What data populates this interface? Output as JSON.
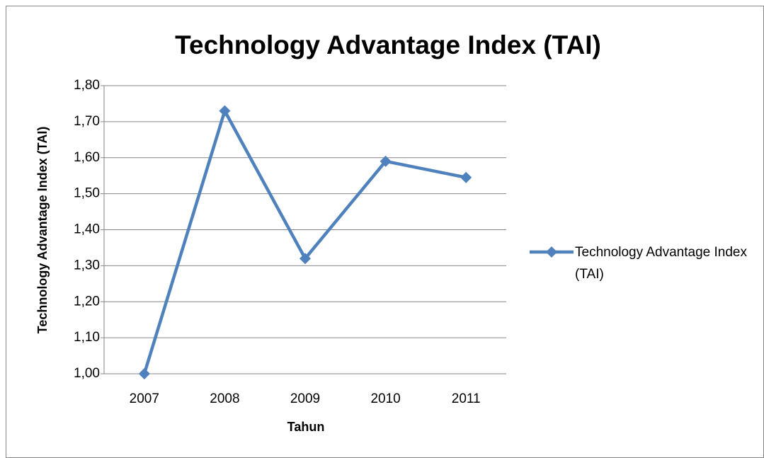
{
  "chart_data": {
    "type": "line",
    "title": "Technology Advantage Index (TAI)",
    "x_label": "Tahun",
    "y_label": "Technology Advantage Index (TAI)",
    "categories": [
      "2007",
      "2008",
      "2009",
      "2010",
      "2011"
    ],
    "series": [
      {
        "name": "Technology Advantage Index (TAI)",
        "color": "#4f81bd",
        "values": [
          1.0,
          1.73,
          1.32,
          1.59,
          1.545
        ]
      }
    ],
    "ylim": [
      1.0,
      1.8
    ],
    "yticks": [
      {
        "value": 1.0,
        "label": "1,00"
      },
      {
        "value": 1.1,
        "label": "1,10"
      },
      {
        "value": 1.2,
        "label": "1,20"
      },
      {
        "value": 1.3,
        "label": "1,30"
      },
      {
        "value": 1.4,
        "label": "1,40"
      },
      {
        "value": 1.5,
        "label": "1,50"
      },
      {
        "value": 1.6,
        "label": "1,60"
      },
      {
        "value": 1.7,
        "label": "1,70"
      },
      {
        "value": 1.8,
        "label": "1,80"
      }
    ],
    "grid": true,
    "legend": "right"
  }
}
